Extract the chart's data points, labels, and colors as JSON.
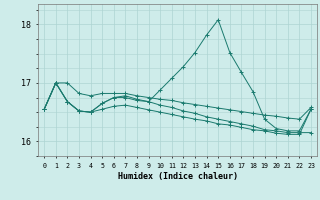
{
  "xlabel": "Humidex (Indice chaleur)",
  "background_color": "#ceecea",
  "grid_color": "#aed4d2",
  "line_color": "#1a7a6e",
  "ylim": [
    15.75,
    18.35
  ],
  "y_ticks": [
    16,
    17,
    18
  ],
  "x_ticks": [
    0,
    1,
    2,
    3,
    4,
    5,
    6,
    7,
    8,
    9,
    10,
    11,
    12,
    13,
    14,
    15,
    16,
    17,
    18,
    19,
    20,
    21,
    22,
    23
  ],
  "series": [
    [
      16.55,
      17.0,
      17.0,
      16.82,
      16.78,
      16.82,
      16.82,
      16.82,
      16.78,
      16.75,
      16.72,
      16.7,
      16.66,
      16.63,
      16.6,
      16.57,
      16.54,
      16.51,
      16.48,
      16.45,
      16.43,
      16.4,
      16.38,
      16.58
    ],
    [
      16.55,
      17.0,
      16.68,
      16.52,
      16.5,
      16.65,
      16.75,
      16.78,
      16.72,
      16.68,
      16.62,
      16.58,
      16.52,
      16.48,
      16.42,
      16.38,
      16.34,
      16.3,
      16.26,
      16.2,
      16.18,
      16.15,
      16.15,
      16.15
    ],
    [
      16.55,
      17.0,
      16.68,
      16.52,
      16.5,
      16.65,
      16.75,
      16.75,
      16.7,
      16.68,
      16.88,
      17.08,
      17.28,
      17.52,
      17.82,
      18.08,
      17.52,
      17.18,
      16.85,
      16.38,
      16.22,
      16.18,
      16.18,
      16.55
    ],
    [
      16.55,
      17.0,
      16.68,
      16.52,
      16.5,
      16.55,
      16.6,
      16.62,
      16.58,
      16.54,
      16.5,
      16.46,
      16.42,
      16.38,
      16.35,
      16.3,
      16.28,
      16.24,
      16.2,
      16.18,
      16.14,
      16.12,
      16.12,
      16.55
    ]
  ]
}
